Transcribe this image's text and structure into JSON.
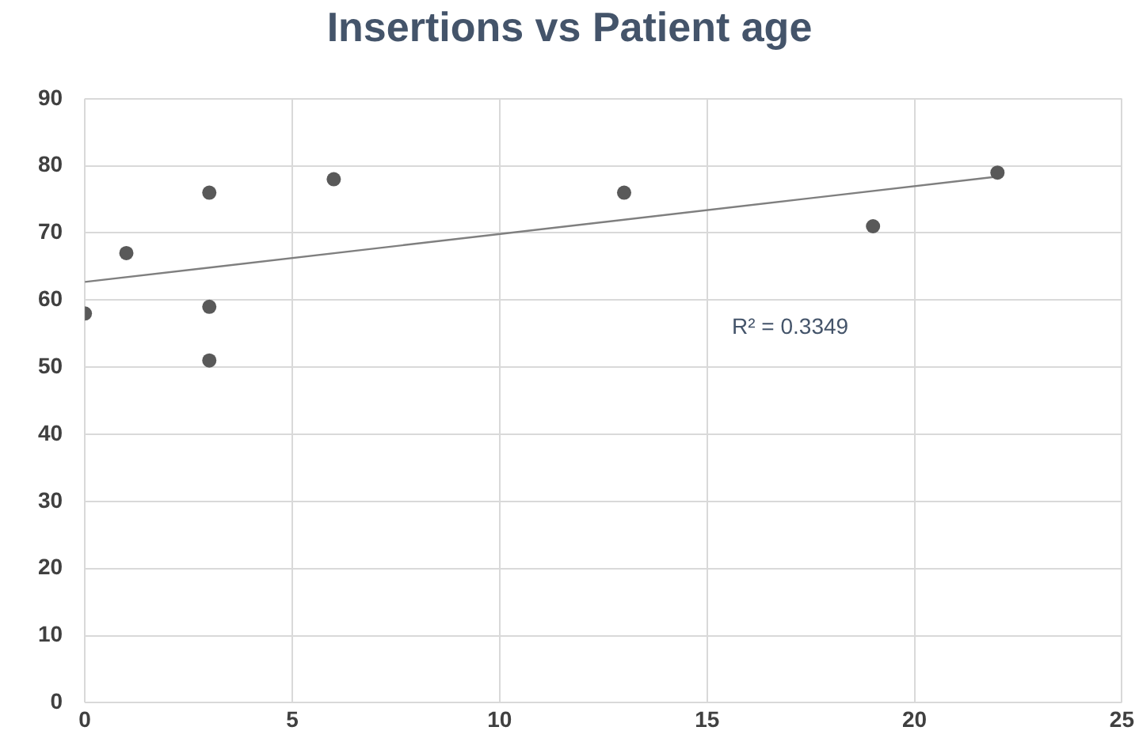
{
  "chart_data": {
    "type": "scatter",
    "title": "Insertions vs Patient age",
    "xlim": [
      0,
      25
    ],
    "xticks": [
      0,
      5,
      10,
      15,
      20,
      25
    ],
    "ylim": [
      0,
      90
    ],
    "yticks": [
      0,
      10,
      20,
      30,
      40,
      50,
      60,
      70,
      80,
      90
    ],
    "grid": true,
    "marker": "circle",
    "legend": false,
    "series": [
      {
        "type": "scatter",
        "color": "#595959",
        "x": [
          0,
          1,
          3,
          3,
          3,
          6,
          13,
          19,
          22
        ],
        "values": [
          58,
          67,
          76,
          59,
          51,
          78,
          76,
          71,
          79
        ]
      },
      {
        "type": "line",
        "color": "#7f7f7f",
        "x": [
          0,
          22
        ],
        "values": [
          62.7,
          78.4
        ],
        "marker": "none"
      }
    ],
    "annotations": [
      "R² = 0.3349"
    ]
  }
}
